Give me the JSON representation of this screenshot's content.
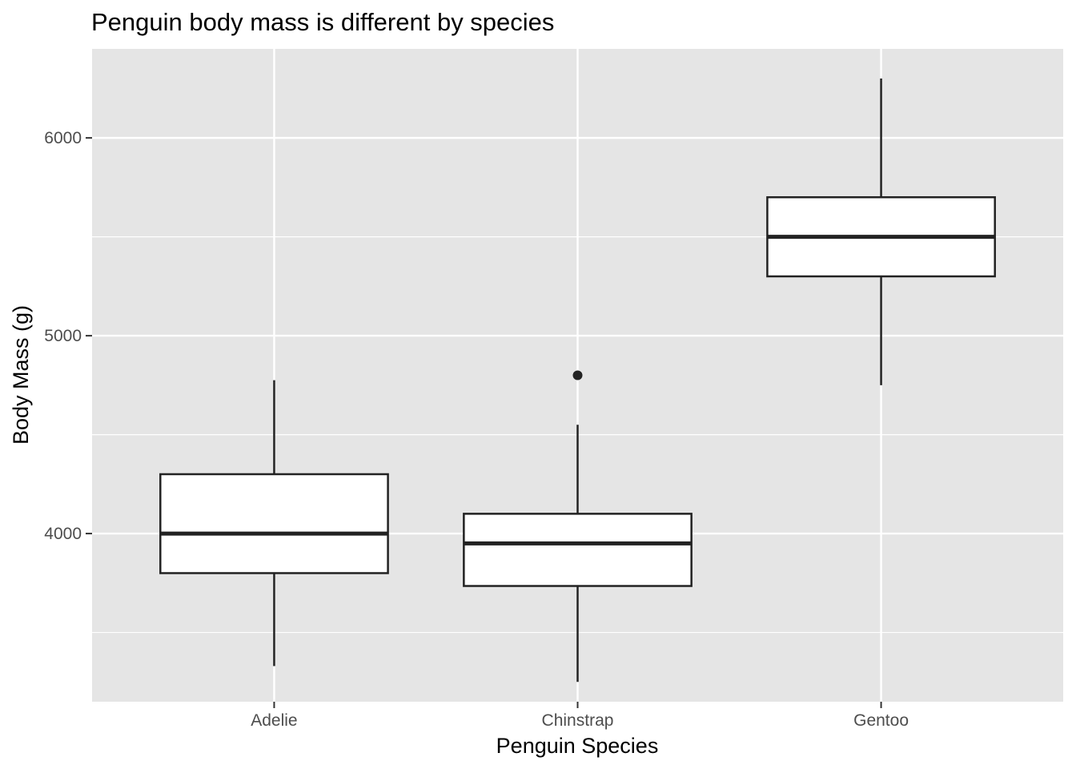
{
  "chart_data": {
    "type": "boxplot",
    "title": "Penguin body mass is different by species",
    "xlabel": "Penguin Species",
    "ylabel": "Body Mass (g)",
    "ylim": [
      3150,
      6450
    ],
    "yticks": [
      4000,
      5000,
      6000
    ],
    "y_minor_ticks": [
      3500,
      4500,
      5500
    ],
    "grid": true,
    "legend": "none",
    "categories": [
      "Adelie",
      "Chinstrap",
      "Gentoo"
    ],
    "boxes": [
      {
        "category": "Adelie",
        "whisker_low": 3330,
        "q1": 3800,
        "median": 4000,
        "q3": 4300,
        "whisker_high": 4775,
        "outliers": []
      },
      {
        "category": "Chinstrap",
        "whisker_low": 3250,
        "q1": 3735,
        "median": 3950,
        "q3": 4100,
        "whisker_high": 4550,
        "outliers": [
          4800
        ]
      },
      {
        "category": "Gentoo",
        "whisker_low": 4750,
        "q1": 5300,
        "median": 5500,
        "q3": 5700,
        "whisker_high": 6300,
        "outliers": []
      }
    ],
    "colors": {
      "panel": "#e5e5e5",
      "grid": "#ffffff",
      "box_fill": "#ffffff",
      "box_line": "#222222",
      "tick_text": "#4d4d4d"
    }
  }
}
